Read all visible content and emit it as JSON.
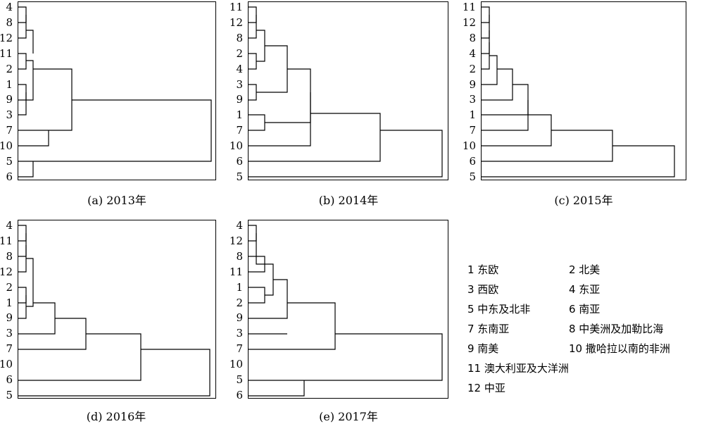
{
  "panels": [
    {
      "caption": "(a) 2013年",
      "leaves": [
        "4",
        "8",
        "12",
        "11",
        "2",
        "1",
        "9",
        "3",
        "7",
        "10",
        "5",
        "6"
      ]
    },
    {
      "caption": "(b) 2014年",
      "leaves": [
        "11",
        "12",
        "8",
        "2",
        "4",
        "3",
        "9",
        "1",
        "7",
        "10",
        "6",
        "5"
      ]
    },
    {
      "caption": "(c) 2015年",
      "leaves": [
        "11",
        "12",
        "8",
        "4",
        "2",
        "9",
        "3",
        "1",
        "7",
        "10",
        "6",
        "5"
      ]
    },
    {
      "caption": "(d) 2016年",
      "leaves": [
        "4",
        "11",
        "8",
        "12",
        "2",
        "1",
        "9",
        "3",
        "7",
        "10",
        "6",
        "5"
      ]
    },
    {
      "caption": "(e) 2017年",
      "leaves": [
        "4",
        "12",
        "8",
        "11",
        "1",
        "2",
        "9",
        "3",
        "7",
        "10",
        "5",
        "6"
      ]
    }
  ],
  "legend": [
    "1 东欧",
    "2 北美",
    "3 西欧",
    "4 东亚",
    "5 中东及北非",
    "6 南亚",
    "7 东南亚",
    "8 中美洲及加勒比海",
    "9 南美",
    "10 撒哈拉以南的非洲",
    "11 澳大利亚及大洋洲",
    "12 中亚"
  ]
}
